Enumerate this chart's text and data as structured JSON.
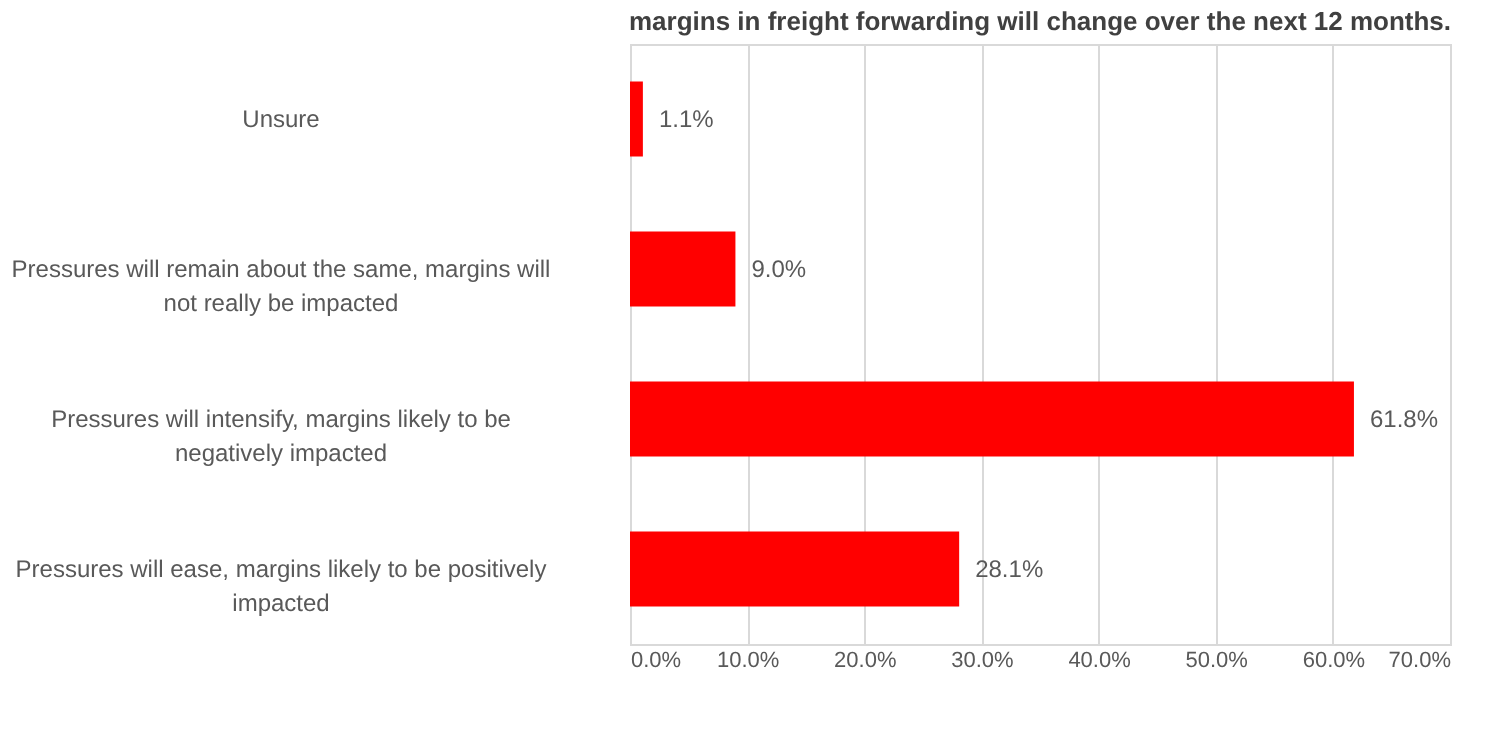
{
  "chart_data": {
    "type": "bar",
    "orientation": "horizontal",
    "title": "margins in freight forwarding will change over the next 12 months.",
    "categories": [
      "Unsure",
      "Pressures will remain about the same, margins will not really be impacted",
      "Pressures will intensify, margins likely to be negatively impacted",
      "Pressures will ease, margins likely to be positively impacted"
    ],
    "values": [
      1.1,
      9.0,
      61.8,
      28.1
    ],
    "value_labels": [
      "1.1%",
      "9.0%",
      "61.8%",
      "28.1%"
    ],
    "color": "#ff0000",
    "xlim": [
      0,
      70
    ],
    "xticks": [
      {
        "value": 0,
        "label": "0.0%"
      },
      {
        "value": 10,
        "label": "10.0%"
      },
      {
        "value": 20,
        "label": "20.0%"
      },
      {
        "value": 30,
        "label": "30.0%"
      },
      {
        "value": 40,
        "label": "40.0%"
      },
      {
        "value": 50,
        "label": "50.0%"
      },
      {
        "value": 60,
        "label": "60.0%"
      },
      {
        "value": 70,
        "label": "70.0%"
      }
    ],
    "grid": "x"
  }
}
